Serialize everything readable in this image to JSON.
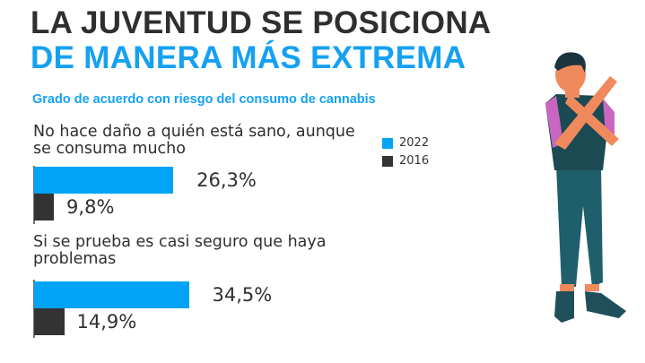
{
  "title_line1": "LA JUVENTUD SE POSICIONA",
  "title_line2": "DE MANERA MÁS EXTREMA",
  "subtitle": "Grado de acuerdo con riesgo del consumo de cannabis",
  "colors": {
    "2022": "#00a3f5",
    "2016": "#333333",
    "title_dark": "#2f2f2f",
    "title_blue": "#15a1f2"
  },
  "chart_data": {
    "type": "bar",
    "orientation": "horizontal",
    "categories": [
      "No hace daño a quién está sano, aunque se consuma mucho",
      "Si se prueba es casi seguro que haya problemas"
    ],
    "series": [
      {
        "name": "2022",
        "values": [
          26.3,
          34.5
        ],
        "labels": [
          "26,3%",
          "34,5%"
        ]
      },
      {
        "name": "2016",
        "values": [
          9.8,
          14.9
        ],
        "labels": [
          "9,8%",
          "14,9%"
        ]
      }
    ],
    "legend": {
      "placement": "right",
      "entries": [
        "2022",
        "2016"
      ]
    },
    "grid": false
  }
}
